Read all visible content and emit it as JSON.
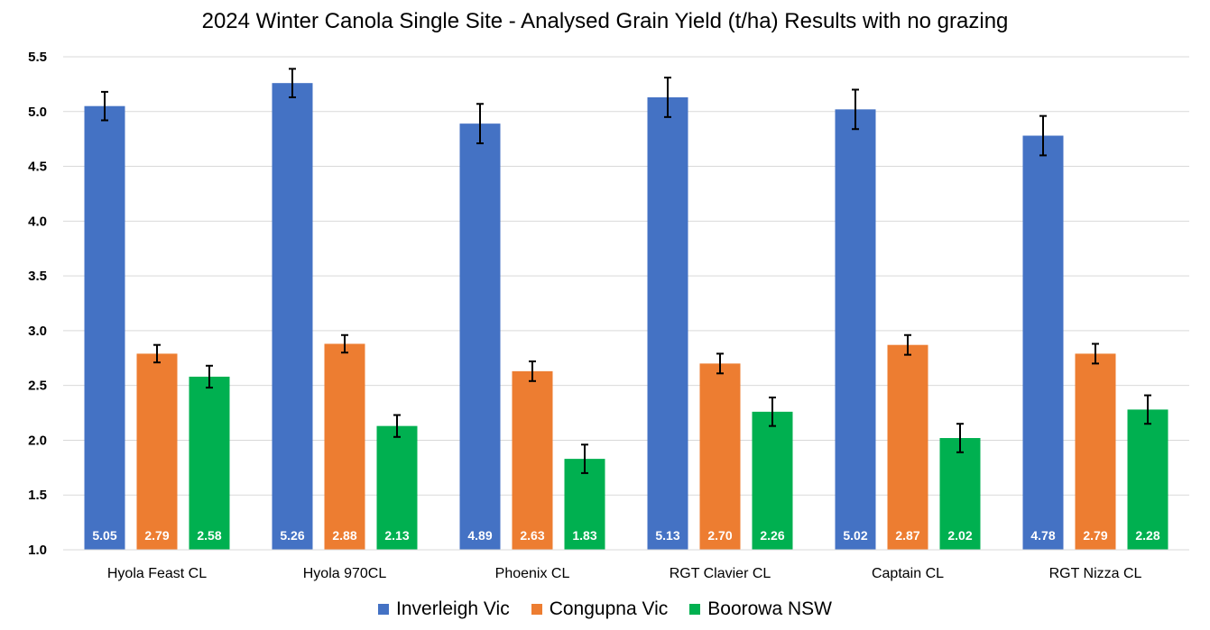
{
  "chart_data": {
    "type": "bar",
    "title": "2024 Winter Canola Single Site - Analysed Grain Yield (t/ha) Results with no grazing",
    "xlabel": "",
    "ylabel": "",
    "ylim": [
      1.0,
      5.5
    ],
    "yticks": [
      "1.0",
      "1.5",
      "2.0",
      "2.5",
      "3.0",
      "3.5",
      "4.0",
      "4.5",
      "5.0",
      "5.5"
    ],
    "grid": true,
    "legend_position": "bottom",
    "categories": [
      "Hyola Feast CL",
      "Hyola 970CL",
      "Phoenix CL",
      "RGT Clavier CL",
      "Captain CL",
      "RGT Nizza CL"
    ],
    "series": [
      {
        "name": "Inverleigh Vic",
        "color": "#4472C4",
        "values": [
          5.05,
          5.26,
          4.89,
          5.13,
          5.02,
          4.78
        ],
        "labels": [
          "5.05",
          "5.26",
          "4.89",
          "5.13",
          "5.02",
          "4.78"
        ],
        "error": [
          0.13,
          0.13,
          0.18,
          0.18,
          0.18,
          0.18
        ]
      },
      {
        "name": "Congupna Vic",
        "color": "#ED7D31",
        "values": [
          2.79,
          2.88,
          2.63,
          2.7,
          2.87,
          2.79
        ],
        "labels": [
          "2.79",
          "2.88",
          "2.63",
          "2.70",
          "2.87",
          "2.79"
        ],
        "error": [
          0.08,
          0.08,
          0.09,
          0.09,
          0.09,
          0.09
        ]
      },
      {
        "name": "Boorowa NSW",
        "color": "#00B050",
        "values": [
          2.58,
          2.13,
          1.83,
          2.26,
          2.02,
          2.28
        ],
        "labels": [
          "2.58",
          "2.13",
          "1.83",
          "2.26",
          "2.02",
          "2.28"
        ],
        "error": [
          0.1,
          0.1,
          0.13,
          0.13,
          0.13,
          0.13
        ]
      }
    ]
  }
}
